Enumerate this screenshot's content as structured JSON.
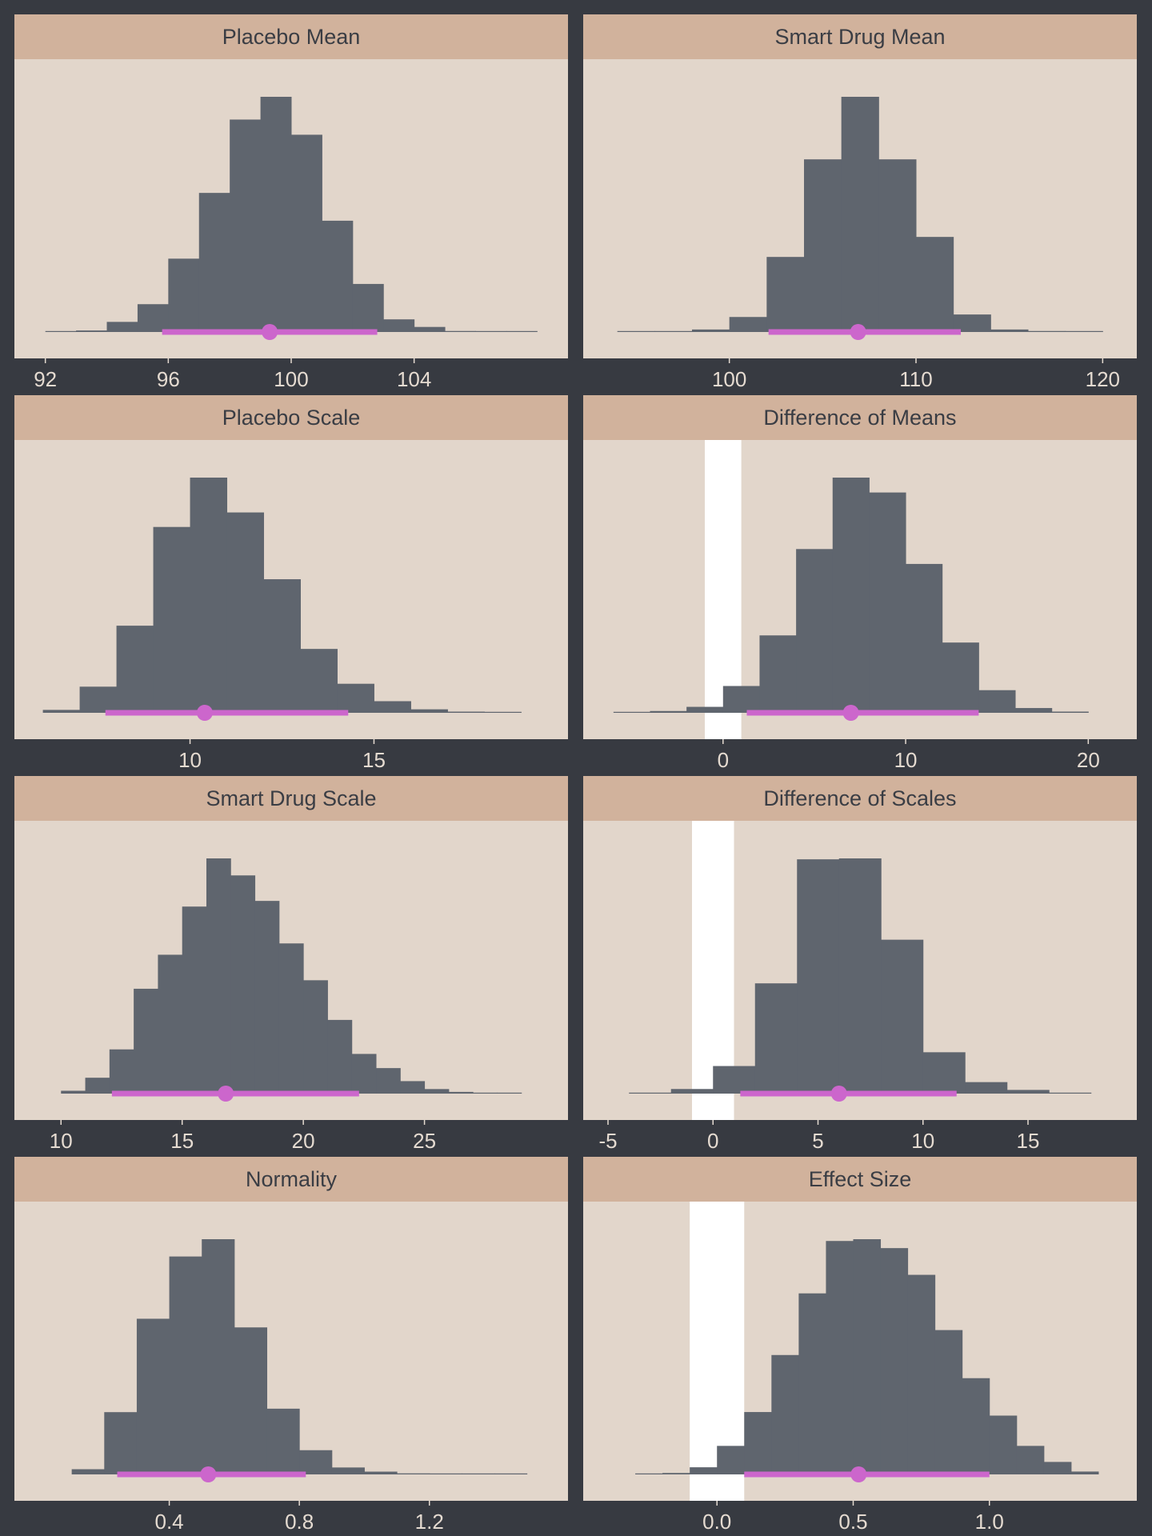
{
  "colors": {
    "background": "#373a41",
    "panel": "#e2d6cb",
    "strip": "#d1b29c",
    "bars": "#5f656e",
    "interval": "#cc66cc",
    "rope": "#ffffff",
    "tick_text": "#e5dbd1",
    "strip_text": "#3a3d44"
  },
  "chart_data": [
    {
      "type": "histogram",
      "title": "Placebo Mean",
      "xlim": [
        91.8,
        108.2
      ],
      "ticks": [
        92,
        96,
        100,
        104
      ],
      "tick_labels": [
        "92",
        "96",
        "100",
        "104"
      ],
      "bins": [
        [
          92,
          93
        ],
        [
          93,
          94
        ],
        [
          94,
          95
        ],
        [
          95,
          96
        ],
        [
          96,
          97
        ],
        [
          97,
          98
        ],
        [
          98,
          99
        ],
        [
          99,
          100
        ],
        [
          100,
          101
        ],
        [
          101,
          102
        ],
        [
          102,
          103
        ],
        [
          103,
          104
        ],
        [
          104,
          105
        ],
        [
          105,
          106
        ],
        [
          106,
          107
        ],
        [
          107,
          108
        ]
      ],
      "counts": [
        1,
        3,
        20,
        55,
        145,
        275,
        420,
        465,
        390,
        220,
        95,
        25,
        10,
        2,
        1,
        1
      ],
      "point_estimate": 99.3,
      "interval": [
        95.8,
        102.8
      ],
      "rope": null
    },
    {
      "type": "histogram",
      "title": "Smart Drug Mean",
      "xlim": [
        93.5,
        120.5
      ],
      "ticks": [
        100,
        110,
        120
      ],
      "tick_labels": [
        "100",
        "110",
        "120"
      ],
      "bins": [
        [
          94,
          96
        ],
        [
          96,
          98
        ],
        [
          98,
          100
        ],
        [
          100,
          102
        ],
        [
          102,
          104
        ],
        [
          104,
          106
        ],
        [
          106,
          108
        ],
        [
          108,
          110
        ],
        [
          110,
          112
        ],
        [
          112,
          114
        ],
        [
          114,
          116
        ],
        [
          116,
          118
        ],
        [
          118,
          120
        ]
      ],
      "counts": [
        1,
        1,
        5,
        30,
        150,
        345,
        470,
        345,
        190,
        35,
        5,
        2,
        1
      ],
      "point_estimate": 106.9,
      "interval": [
        102.1,
        112.4
      ],
      "rope": null
    },
    {
      "type": "histogram",
      "title": "Placebo Scale",
      "xlim": [
        5.9,
        19.6
      ],
      "ticks": [
        10,
        15
      ],
      "tick_labels": [
        "10",
        "15"
      ],
      "bins": [
        [
          6,
          7
        ],
        [
          7,
          8
        ],
        [
          8,
          9
        ],
        [
          9,
          10
        ],
        [
          10,
          11
        ],
        [
          11,
          12
        ],
        [
          12,
          13
        ],
        [
          13,
          14
        ],
        [
          14,
          15
        ],
        [
          15,
          16
        ],
        [
          16,
          17
        ],
        [
          17,
          18
        ],
        [
          18,
          19
        ]
      ],
      "counts": [
        5,
        45,
        150,
        320,
        405,
        345,
        230,
        110,
        50,
        20,
        6,
        2,
        1
      ],
      "point_estimate": 10.4,
      "interval": [
        7.7,
        14.3
      ],
      "rope": null
    },
    {
      "type": "histogram",
      "title": "Difference of Means",
      "xlim": [
        -6.3,
        21.3
      ],
      "ticks": [
        0,
        10,
        20
      ],
      "tick_labels": [
        "0",
        "10",
        "20"
      ],
      "bins": [
        [
          -6,
          -4
        ],
        [
          -4,
          -2
        ],
        [
          -2,
          0
        ],
        [
          0,
          2
        ],
        [
          2,
          4
        ],
        [
          4,
          6
        ],
        [
          6,
          8
        ],
        [
          8,
          10
        ],
        [
          10,
          12
        ],
        [
          12,
          14
        ],
        [
          14,
          16
        ],
        [
          16,
          18
        ],
        [
          18,
          20
        ]
      ],
      "counts": [
        1,
        3,
        10,
        45,
        130,
        275,
        395,
        370,
        250,
        118,
        38,
        8,
        2
      ],
      "point_estimate": 7.0,
      "interval": [
        1.3,
        14.0
      ],
      "rope": [
        -1,
        1
      ]
    },
    {
      "type": "histogram",
      "title": "Smart Drug Scale",
      "xlim": [
        9.1,
        29.9
      ],
      "ticks": [
        10,
        15,
        20,
        25
      ],
      "tick_labels": [
        "10",
        "15",
        "20",
        "25"
      ],
      "bins": [
        [
          10,
          11
        ],
        [
          11,
          12
        ],
        [
          12,
          13
        ],
        [
          13,
          14
        ],
        [
          14,
          15
        ],
        [
          15,
          16
        ],
        [
          16,
          17
        ],
        [
          17,
          18
        ],
        [
          18,
          19
        ],
        [
          19,
          20
        ],
        [
          20,
          21
        ],
        [
          21,
          22
        ],
        [
          22,
          23
        ],
        [
          23,
          24
        ],
        [
          24,
          25
        ],
        [
          25,
          26
        ],
        [
          26,
          27
        ],
        [
          27,
          28
        ],
        [
          28,
          29
        ]
      ],
      "counts": [
        5,
        28,
        78,
        185,
        245,
        330,
        415,
        385,
        340,
        265,
        200,
        130,
        70,
        45,
        22,
        8,
        3,
        1,
        1
      ],
      "point_estimate": 16.8,
      "interval": [
        12.1,
        22.3
      ],
      "rope": null
    },
    {
      "type": "histogram",
      "title": "Difference of Scales",
      "xlim": [
        -5,
        19
      ],
      "ticks": [
        -5,
        0,
        5,
        10,
        15
      ],
      "tick_labels": [
        "-5",
        "0",
        "5",
        "10",
        "15"
      ],
      "bins": [
        [
          -4,
          -2
        ],
        [
          -2,
          0
        ],
        [
          0,
          2
        ],
        [
          2,
          4
        ],
        [
          4,
          6
        ],
        [
          6,
          8
        ],
        [
          8,
          10
        ],
        [
          10,
          12
        ],
        [
          12,
          14
        ],
        [
          14,
          16
        ],
        [
          16,
          18
        ]
      ],
      "counts": [
        2,
        10,
        60,
        240,
        510,
        512,
        335,
        90,
        25,
        8,
        2
      ],
      "point_estimate": 6.0,
      "interval": [
        1.3,
        11.6
      ],
      "rope": [
        -1,
        1
      ]
    },
    {
      "type": "histogram",
      "title": "Normality",
      "xlim": [
        0.0,
        1.55
      ],
      "ticks": [
        0.4,
        0.8,
        1.2
      ],
      "tick_labels": [
        "0.4",
        "0.8",
        "1.2"
      ],
      "bins": [
        [
          0.1,
          0.2
        ],
        [
          0.2,
          0.3
        ],
        [
          0.3,
          0.4
        ],
        [
          0.4,
          0.5
        ],
        [
          0.5,
          0.6
        ],
        [
          0.6,
          0.7
        ],
        [
          0.7,
          0.8
        ],
        [
          0.8,
          0.9
        ],
        [
          0.9,
          1.0
        ],
        [
          1.0,
          1.1
        ],
        [
          1.1,
          1.2
        ],
        [
          1.2,
          1.3
        ],
        [
          1.3,
          1.4
        ],
        [
          1.4,
          1.5
        ]
      ],
      "counts": [
        15,
        180,
        450,
        630,
        680,
        425,
        190,
        70,
        20,
        8,
        3,
        1,
        1,
        1
      ],
      "point_estimate": 0.52,
      "interval": [
        0.24,
        0.82
      ],
      "rope": null
    },
    {
      "type": "histogram",
      "title": "Effect Size",
      "xlim": [
        -0.4,
        1.45
      ],
      "ticks": [
        0.0,
        0.5,
        1.0
      ],
      "tick_labels": [
        "0.0",
        "0.5",
        "1.0"
      ],
      "bins": [
        [
          -0.3,
          -0.2
        ],
        [
          -0.2,
          -0.1
        ],
        [
          -0.1,
          0.0
        ],
        [
          0.0,
          0.1
        ],
        [
          0.1,
          0.2
        ],
        [
          0.2,
          0.3
        ],
        [
          0.3,
          0.4
        ],
        [
          0.4,
          0.5
        ],
        [
          0.5,
          0.6
        ],
        [
          0.6,
          0.7
        ],
        [
          0.7,
          0.8
        ],
        [
          0.8,
          0.9
        ],
        [
          0.9,
          1.0
        ],
        [
          1.0,
          1.1
        ],
        [
          1.1,
          1.2
        ],
        [
          1.2,
          1.3
        ],
        [
          1.3,
          1.4
        ]
      ],
      "counts": [
        1,
        4,
        20,
        80,
        175,
        335,
        508,
        655,
        660,
        635,
        560,
        405,
        270,
        165,
        80,
        35,
        8
      ],
      "point_estimate": 0.52,
      "interval": [
        0.1,
        1.0
      ],
      "rope": [
        -0.1,
        0.1
      ]
    }
  ]
}
